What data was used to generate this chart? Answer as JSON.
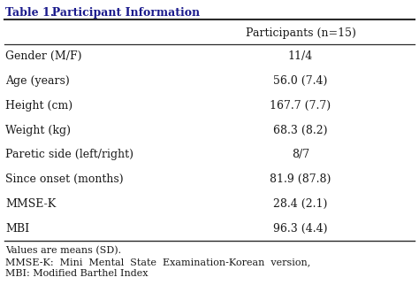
{
  "title_bold": "Table 1.",
  "title_normal": "  Participant Information",
  "title_color": "#1a1a8c",
  "col_header": "Participants (n=15)",
  "rows": [
    [
      "Gender (M/F)",
      "11/4"
    ],
    [
      "Age (years)",
      "56.0 (7.4)"
    ],
    [
      "Height (cm)",
      "167.7 (7.7)"
    ],
    [
      "Weight (kg)",
      "68.3 (8.2)"
    ],
    [
      "Paretic side (left/right)",
      "8/7"
    ],
    [
      "Since onset (months)",
      "81.9 (87.8)"
    ],
    [
      "MMSE-K",
      "28.4 (2.1)"
    ],
    [
      "MBI",
      "96.3 (4.4)"
    ]
  ],
  "footnotes": [
    "Values are means (SD).",
    "MMSE-K:  Mini  Mental  State  Examination-Korean  version,",
    "MBI: Modified Barthel Index"
  ],
  "bg_color": "#ffffff",
  "text_color": "#1a1a1a",
  "header_color": "#1a1a1a",
  "line_color": "#2a2a2a",
  "font_family": "DejaVu Serif",
  "title_fontsize": 9.0,
  "header_fontsize": 9.0,
  "cell_fontsize": 9.0,
  "footnote_fontsize": 8.0,
  "figsize": [
    4.74,
    3.22
  ],
  "dpi": 100
}
